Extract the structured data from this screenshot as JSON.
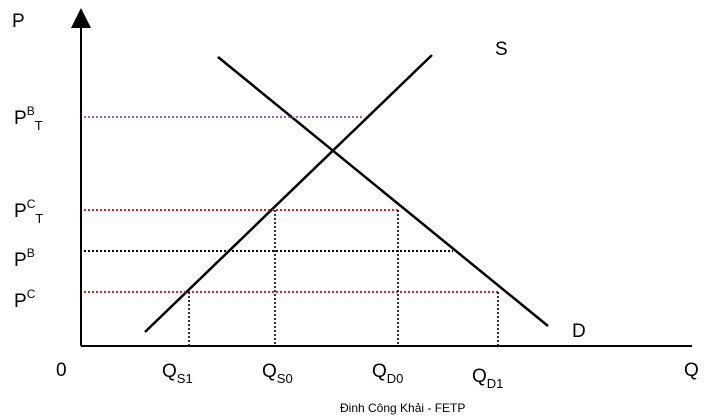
{
  "axes": {
    "y_label": "P",
    "x_label": "Q",
    "origin_label": "0"
  },
  "curves": {
    "supply_label": "S",
    "demand_label": "D"
  },
  "price_labels": [
    {
      "id": "pbt",
      "base": "P",
      "sup": "B",
      "sub": "T",
      "color": "#8e6fb0",
      "style": "dotted"
    },
    {
      "id": "pct",
      "base": "P",
      "sup": "C",
      "sub": "T",
      "color": "#e02020",
      "style": "dotted"
    },
    {
      "id": "pb",
      "base": "P",
      "sup": "B",
      "sub": "",
      "color": "#000000",
      "style": "dotted"
    },
    {
      "id": "pc",
      "base": "P",
      "sup": "C",
      "sub": "",
      "color": "#e02020",
      "style": "dotted"
    }
  ],
  "quantity_labels": [
    {
      "id": "qs1",
      "base": "Q",
      "sub": "S1"
    },
    {
      "id": "qs0",
      "base": "Q",
      "sub": "S0"
    },
    {
      "id": "qd0",
      "base": "Q",
      "sub": "D0"
    },
    {
      "id": "qd1",
      "base": "Q",
      "sub": "D1"
    }
  ],
  "credit": "Đinh Công Khải - FETP",
  "colors": {
    "axis": "#000000",
    "curve": "#000000",
    "purple_dotted": "#8e6fb0",
    "red_dotted": "#e02020",
    "black_dotted": "#000000"
  }
}
